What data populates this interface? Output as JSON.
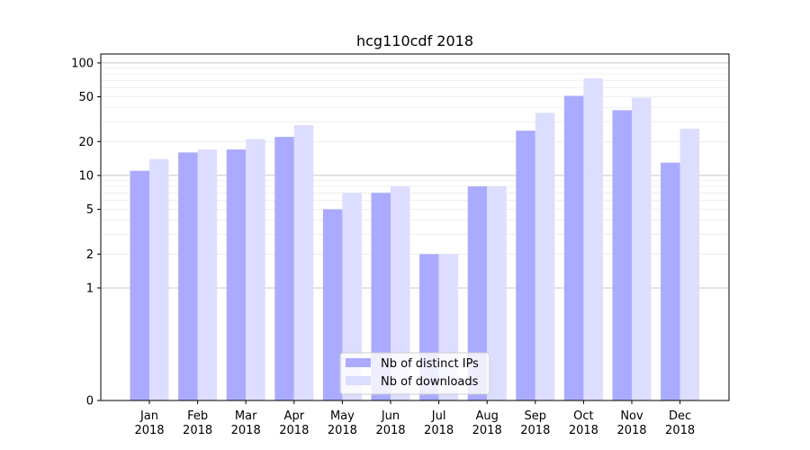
{
  "chart_data": {
    "type": "bar",
    "title": "hcg110cdf 2018",
    "xlabel": "",
    "ylabel": "",
    "y_scale": "symlog",
    "ylim": [
      0,
      120
    ],
    "yticks": [
      0,
      1,
      2,
      5,
      10,
      20,
      50,
      100
    ],
    "ytick_labels": [
      "0",
      "1",
      "2",
      "5",
      "10",
      "20",
      "50",
      "100"
    ],
    "major_grid": [
      1,
      10,
      100
    ],
    "minor_grid": [
      2,
      3,
      4,
      5,
      6,
      7,
      8,
      9,
      20,
      30,
      40,
      50,
      60,
      70,
      80,
      90
    ],
    "categories": [
      {
        "month": "Jan",
        "year": "2018"
      },
      {
        "month": "Feb",
        "year": "2018"
      },
      {
        "month": "Mar",
        "year": "2018"
      },
      {
        "month": "Apr",
        "year": "2018"
      },
      {
        "month": "May",
        "year": "2018"
      },
      {
        "month": "Jun",
        "year": "2018"
      },
      {
        "month": "Jul",
        "year": "2018"
      },
      {
        "month": "Aug",
        "year": "2018"
      },
      {
        "month": "Sep",
        "year": "2018"
      },
      {
        "month": "Oct",
        "year": "2018"
      },
      {
        "month": "Nov",
        "year": "2018"
      },
      {
        "month": "Dec",
        "year": "2018"
      }
    ],
    "series": [
      {
        "name": "Nb of distinct IPs",
        "color": "#aaaaff",
        "values": [
          11,
          16,
          17,
          22,
          5,
          7,
          2,
          8,
          25,
          51,
          38,
          13
        ]
      },
      {
        "name": "Nb of downloads",
        "color": "#ddddff",
        "values": [
          14,
          17,
          21,
          28,
          7,
          8,
          2,
          8,
          36,
          73,
          49,
          26
        ]
      }
    ],
    "legend_position": "lower-center"
  }
}
